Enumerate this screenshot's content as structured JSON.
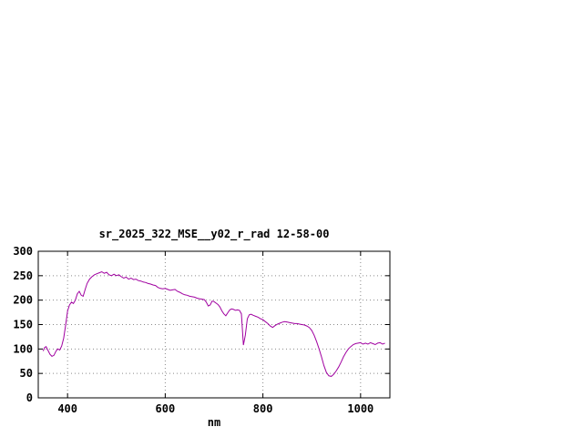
{
  "page": {
    "background_color": "#ffffff"
  },
  "chart_data": {
    "type": "line",
    "title": "sr_2025_322_MSE__y02_r_rad 12-58-00",
    "xlabel": "nm",
    "ylabel": "",
    "xlim": [
      340,
      1060
    ],
    "ylim": [
      0,
      300
    ],
    "xticks": [
      400,
      600,
      800,
      1000
    ],
    "yticks": [
      0,
      50,
      100,
      150,
      200,
      250,
      300
    ],
    "grid": true,
    "legend_position": "none",
    "line_color": "#a000a0",
    "series": [
      {
        "x": [
          350,
          353,
          356,
          360,
          364,
          368,
          372,
          376,
          380,
          384,
          388,
          392,
          396,
          400,
          404,
          408,
          412,
          416,
          420,
          424,
          428,
          432,
          436,
          440,
          445,
          450,
          455,
          460,
          465,
          470,
          475,
          480,
          485,
          490,
          495,
          500,
          505,
          510,
          515,
          520,
          525,
          530,
          535,
          540,
          545,
          550,
          555,
          560,
          565,
          570,
          575,
          580,
          585,
          590,
          595,
          600,
          605,
          610,
          615,
          620,
          625,
          630,
          635,
          640,
          645,
          650,
          655,
          660,
          665,
          670,
          675,
          680,
          684,
          688,
          692,
          696,
          700,
          704,
          708,
          712,
          716,
          720,
          724,
          728,
          732,
          736,
          740,
          744,
          748,
          752,
          756,
          760,
          764,
          768,
          772,
          776,
          780,
          785,
          790,
          795,
          800,
          805,
          810,
          815,
          820,
          825,
          830,
          835,
          840,
          845,
          850,
          855,
          860,
          865,
          870,
          875,
          880,
          885,
          890,
          895,
          900,
          905,
          910,
          915,
          920,
          925,
          930,
          935,
          940,
          945,
          950,
          955,
          960,
          965,
          970,
          975,
          980,
          985,
          990,
          995,
          1000,
          1005,
          1010,
          1015,
          1020,
          1025,
          1030,
          1035,
          1040,
          1045,
          1050
        ],
        "y": [
          96,
          103,
          105,
          97,
          89,
          85,
          87,
          95,
          100,
          98,
          106,
          122,
          148,
          178,
          190,
          196,
          193,
          200,
          213,
          218,
          210,
          208,
          222,
          234,
          243,
          248,
          252,
          254,
          256,
          258,
          255,
          257,
          252,
          250,
          253,
          250,
          252,
          248,
          245,
          247,
          243,
          245,
          242,
          243,
          240,
          239,
          237,
          236,
          234,
          233,
          231,
          230,
          226,
          224,
          223,
          224,
          222,
          220,
          221,
          222,
          218,
          216,
          213,
          211,
          210,
          208,
          207,
          206,
          204,
          203,
          202,
          201,
          196,
          188,
          190,
          198,
          197,
          194,
          191,
          186,
          178,
          172,
          168,
          174,
          180,
          182,
          181,
          179,
          180,
          179,
          172,
          108,
          128,
          162,
          170,
          171,
          169,
          167,
          165,
          162,
          160,
          156,
          152,
          147,
          144,
          148,
          151,
          153,
          155,
          156,
          155,
          154,
          153,
          152,
          152,
          151,
          150,
          149,
          147,
          144,
          138,
          128,
          115,
          100,
          84,
          66,
          52,
          45,
          44,
          48,
          55,
          63,
          73,
          84,
          93,
          100,
          105,
          109,
          111,
          112,
          113,
          110,
          112,
          110,
          113,
          111,
          109,
          112,
          113,
          110,
          112
        ]
      }
    ]
  }
}
